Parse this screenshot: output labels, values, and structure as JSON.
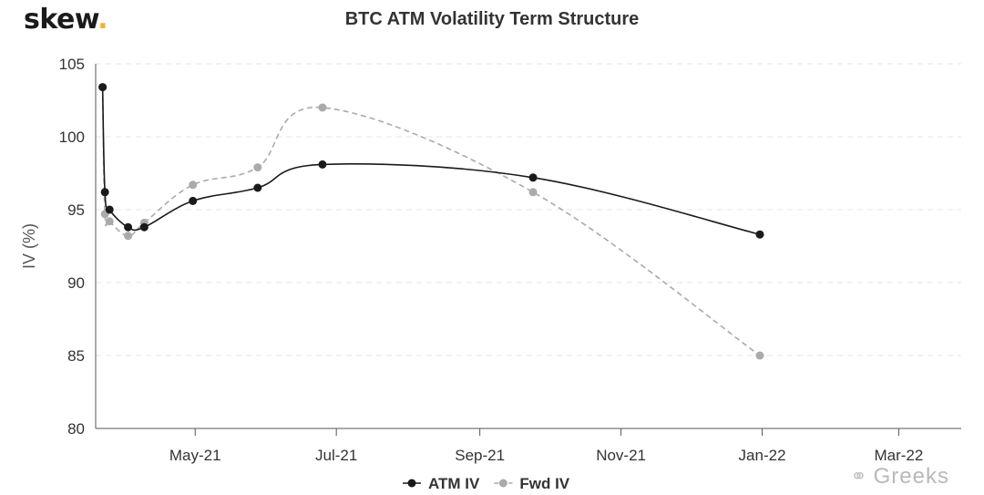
{
  "logo": {
    "text": "skew",
    "dot": "."
  },
  "watermark": {
    "icon": "wechat-icon",
    "text": "Greeks"
  },
  "colors": {
    "atm": "#1a1a1a",
    "fwd": "#aaaaaa",
    "grid": "#e4e4e4",
    "axis": "#555555",
    "logo_dot": "#f2b134"
  },
  "chart_data": {
    "type": "line",
    "title": "BTC ATM Volatility Term Structure",
    "ylabel": "IV (%)",
    "xlabel": "",
    "ylim": [
      80,
      105
    ],
    "yticks": [
      80,
      85,
      90,
      95,
      100,
      105
    ],
    "xlim": [
      "2021-03-19",
      "2022-03-28"
    ],
    "xticks": [
      {
        "date": "2021-05-01",
        "label": "May-21"
      },
      {
        "date": "2021-07-01",
        "label": "Jul-21"
      },
      {
        "date": "2021-09-01",
        "label": "Sep-21"
      },
      {
        "date": "2021-11-01",
        "label": "Nov-21"
      },
      {
        "date": "2022-01-01",
        "label": "Jan-22"
      },
      {
        "date": "2022-03-01",
        "label": "Mar-22"
      }
    ],
    "grid": true,
    "legend": "bottom-center",
    "series": [
      {
        "name": "ATM IV",
        "style": "solid",
        "points": [
          {
            "x": "2021-03-22",
            "y": 103.4
          },
          {
            "x": "2021-03-23",
            "y": 96.2
          },
          {
            "x": "2021-03-25",
            "y": 95.0
          },
          {
            "x": "2021-04-02",
            "y": 93.8
          },
          {
            "x": "2021-04-09",
            "y": 93.8
          },
          {
            "x": "2021-04-30",
            "y": 95.6
          },
          {
            "x": "2021-05-28",
            "y": 96.5
          },
          {
            "x": "2021-06-25",
            "y": 98.1
          },
          {
            "x": "2021-09-24",
            "y": 97.2
          },
          {
            "x": "2021-12-31",
            "y": 93.3
          }
        ]
      },
      {
        "name": "Fwd IV",
        "style": "dashed",
        "points": [
          {
            "x": "2021-03-22",
            "y": 103.4
          },
          {
            "x": "2021-03-23",
            "y": 94.7
          },
          {
            "x": "2021-03-25",
            "y": 94.2
          },
          {
            "x": "2021-04-02",
            "y": 93.2
          },
          {
            "x": "2021-04-09",
            "y": 94.1
          },
          {
            "x": "2021-04-30",
            "y": 96.7
          },
          {
            "x": "2021-05-28",
            "y": 97.9
          },
          {
            "x": "2021-06-25",
            "y": 102.0
          },
          {
            "x": "2021-09-24",
            "y": 96.2
          },
          {
            "x": "2021-12-31",
            "y": 85.0
          }
        ]
      }
    ]
  }
}
